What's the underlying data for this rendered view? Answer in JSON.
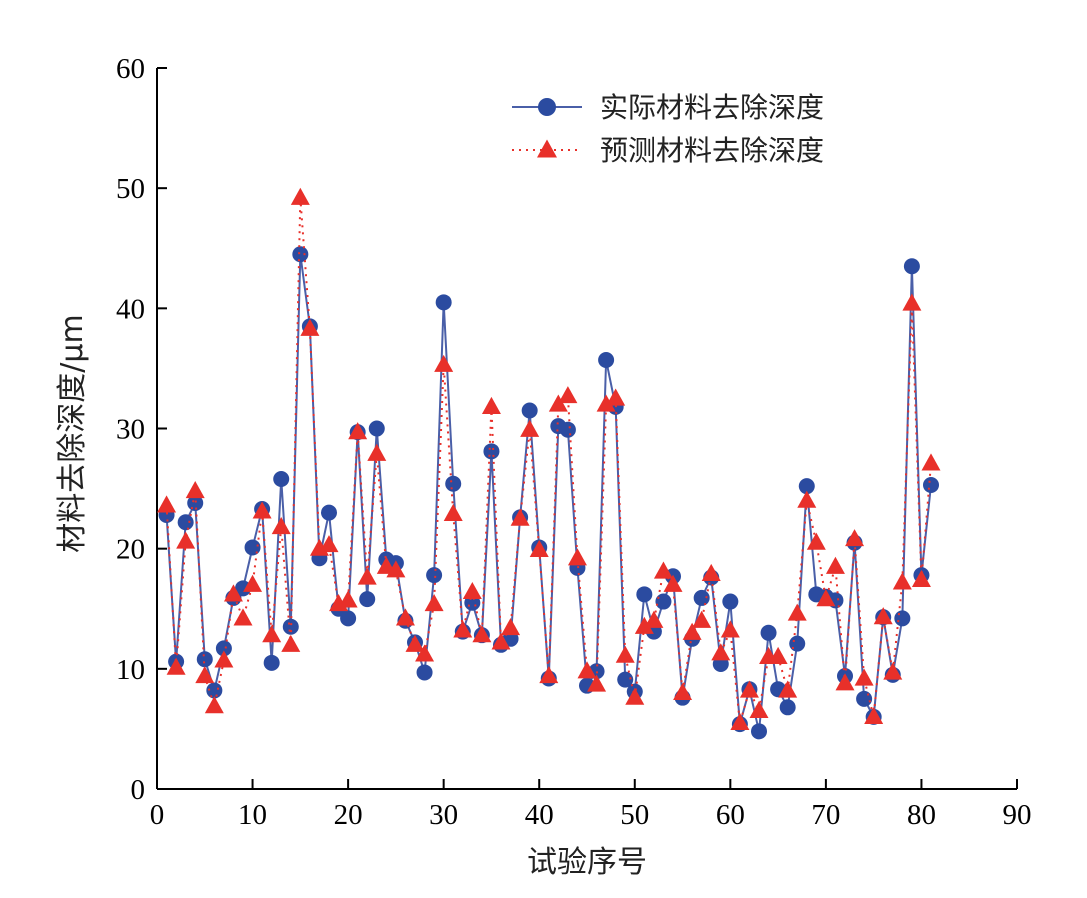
{
  "chart_data": {
    "type": "line",
    "xlabel": "试验序号",
    "ylabel": "材料去除深度/μm",
    "xlim": [
      0,
      90
    ],
    "ylim": [
      0,
      60
    ],
    "xticks": [
      0,
      10,
      20,
      30,
      40,
      50,
      60,
      70,
      80,
      90
    ],
    "yticks": [
      0,
      10,
      20,
      30,
      40,
      50,
      60
    ],
    "grid": false,
    "legend_position": "top-right",
    "x": [
      1,
      2,
      3,
      4,
      5,
      6,
      7,
      8,
      9,
      10,
      11,
      12,
      13,
      14,
      15,
      16,
      17,
      18,
      19,
      20,
      21,
      22,
      23,
      24,
      25,
      26,
      27,
      28,
      29,
      30,
      31,
      32,
      33,
      34,
      35,
      36,
      37,
      38,
      39,
      40,
      41,
      42,
      43,
      44,
      45,
      46,
      47,
      48,
      49,
      50,
      51,
      52,
      53,
      54,
      55,
      56,
      57,
      58,
      59,
      60,
      61,
      62,
      63,
      64,
      65,
      66,
      67,
      68,
      69,
      70,
      71,
      72,
      73,
      74,
      75,
      76,
      77,
      78,
      79,
      80,
      81
    ],
    "series": [
      {
        "name": "实际材料去除深度",
        "color": "#4a5fa8",
        "marker_color": "#2b4ba0",
        "marker": "circle",
        "line_style": "solid",
        "values": [
          22.8,
          10.6,
          22.2,
          23.8,
          10.8,
          8.2,
          11.7,
          15.9,
          16.7,
          20.1,
          23.3,
          10.5,
          25.8,
          13.5,
          44.5,
          38.5,
          19.2,
          23.0,
          15.0,
          14.2,
          29.7,
          15.8,
          30.0,
          19.1,
          18.8,
          14.0,
          12.2,
          9.7,
          17.8,
          40.5,
          25.4,
          13.1,
          15.5,
          12.8,
          28.1,
          12.0,
          12.5,
          22.6,
          31.5,
          20.1,
          9.2,
          30.2,
          29.9,
          18.4,
          8.6,
          9.8,
          35.7,
          31.8,
          9.1,
          8.1,
          16.2,
          13.1,
          15.6,
          17.7,
          7.6,
          12.5,
          15.9,
          17.6,
          10.4,
          15.6,
          5.4,
          8.3,
          4.8,
          13.0,
          8.3,
          6.8,
          12.1,
          25.2,
          16.2,
          16.0,
          15.7,
          9.4,
          20.5,
          7.5,
          6.0,
          14.3,
          9.5,
          14.2,
          43.5,
          17.8,
          25.3
        ]
      },
      {
        "name": "预测材料去除深度",
        "color": "#e8302a",
        "marker_color": "#e8302a",
        "marker": "triangle",
        "line_style": "dotted",
        "values": [
          23.6,
          10.1,
          20.6,
          24.8,
          9.4,
          6.9,
          10.7,
          16.2,
          14.2,
          17.0,
          23.1,
          12.8,
          21.8,
          12.0,
          49.2,
          38.3,
          20.0,
          20.3,
          15.4,
          15.7,
          29.7,
          17.6,
          27.9,
          18.5,
          18.2,
          14.2,
          12.0,
          11.2,
          15.4,
          35.3,
          22.9,
          13.2,
          16.4,
          12.8,
          31.8,
          12.2,
          13.4,
          22.5,
          29.9,
          19.9,
          9.4,
          32.0,
          32.7,
          19.2,
          9.8,
          8.7,
          32.0,
          32.5,
          11.1,
          7.6,
          13.5,
          14.0,
          18.1,
          17.0,
          8.0,
          13.0,
          14.0,
          17.9,
          11.3,
          13.2,
          5.5,
          8.2,
          6.5,
          11.0,
          11.0,
          8.2,
          14.6,
          24.0,
          20.5,
          15.8,
          18.5,
          8.8,
          20.8,
          9.2,
          6.0,
          14.3,
          9.7,
          17.2,
          40.4,
          17.4,
          27.1
        ]
      }
    ]
  }
}
